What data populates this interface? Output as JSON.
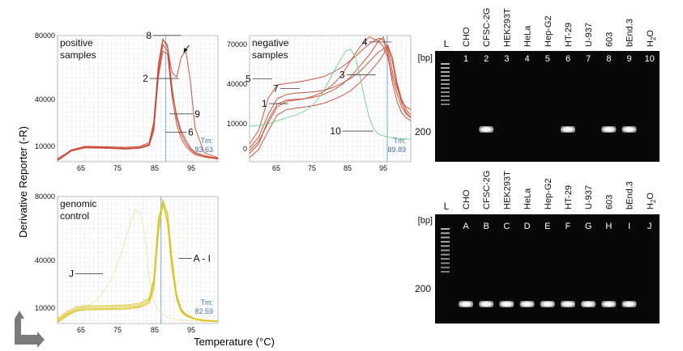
{
  "colors": {
    "background": "#ffffff",
    "gel": "#080808",
    "band": "#f2f2f2",
    "curve_red": "#c8442e",
    "curve_green": "#6fcf8e",
    "curve_yellow": "#d9c21b",
    "curve_yellow_light": "#ece6a0",
    "tm_line": "#6fa8d6",
    "tm_text": "#4a6fa5",
    "grid": "#dcdcdc"
  },
  "y_axis_label": "Derivative Reporter (-R)",
  "x_axis_label": "Temperature (°C)",
  "chart_data": [
    {
      "type": "line",
      "panel_title": "positive samples",
      "x_ticks": [
        "65",
        "75",
        "85",
        "95"
      ],
      "y_ticks": [
        "80000",
        "40000",
        "10000"
      ],
      "xlim": [
        60,
        95
      ],
      "ylim": [
        0,
        82000
      ],
      "tm_label": "Tm:",
      "tm_value": "83.63",
      "tm_x": 83.63,
      "annotations": [
        {
          "text": "8",
          "x": 83.0,
          "y": 80000
        },
        {
          "text": "2",
          "x": 82.6,
          "y": 52000
        },
        {
          "text": "9",
          "x": 85.5,
          "y": 29000
        },
        {
          "text": "6",
          "x": 84.6,
          "y": 17000
        }
      ],
      "arrow_at": [
        87.5,
        71000
      ],
      "series": [
        {
          "color": "red",
          "x": [
            60,
            62,
            63,
            64,
            66,
            70,
            75,
            78,
            80,
            81,
            82,
            83,
            84,
            85,
            86,
            87,
            88,
            89,
            90,
            92,
            95
          ],
          "y": [
            1000,
            5000,
            7200,
            8000,
            9500,
            9000,
            8500,
            9000,
            11000,
            22000,
            60000,
            79000,
            76000,
            48000,
            28000,
            18000,
            12000,
            8000,
            5500,
            3500,
            2000
          ]
        },
        {
          "color": "red",
          "x": [
            60,
            62,
            63,
            64,
            66,
            70,
            75,
            78,
            80,
            81,
            82,
            83,
            84,
            85,
            86,
            87,
            88,
            89,
            90,
            92,
            95
          ],
          "y": [
            2000,
            5600,
            7800,
            8500,
            10000,
            9800,
            9400,
            10000,
            12500,
            26000,
            64000,
            80000,
            74000,
            58000,
            55000,
            68000,
            72000,
            52000,
            22000,
            6000,
            2500
          ]
        },
        {
          "color": "red",
          "x": [
            60,
            62,
            63,
            64,
            66,
            70,
            75,
            78,
            80,
            81,
            82,
            83,
            84,
            85,
            86,
            87,
            88,
            89,
            90,
            92,
            95
          ],
          "y": [
            800,
            4800,
            7000,
            7600,
            9000,
            8800,
            8200,
            8800,
            10500,
            20000,
            55000,
            72000,
            70000,
            42000,
            24000,
            15000,
            10000,
            7000,
            4500,
            3000,
            1800
          ]
        },
        {
          "color": "red",
          "x": [
            60,
            62,
            63,
            64,
            66,
            70,
            75,
            78,
            80,
            81,
            82,
            83,
            84,
            85,
            86,
            87,
            88,
            89,
            90,
            92,
            95
          ],
          "y": [
            1500,
            5200,
            7500,
            8300,
            9700,
            9300,
            8800,
            9300,
            11500,
            24000,
            58000,
            76000,
            72000,
            45000,
            30000,
            20000,
            14000,
            9000,
            6000,
            4000,
            2200
          ]
        }
      ]
    },
    {
      "type": "line",
      "panel_title": "negative samples",
      "x_ticks": [
        "65",
        "75",
        "85",
        "95"
      ],
      "y_ticks": [
        "70000",
        "40000",
        "10000",
        "0",
        "-10000"
      ],
      "xlim": [
        60,
        95
      ],
      "ylim": [
        -18000,
        74000
      ],
      "tm_label": "Tm:",
      "tm_value": "89.89",
      "tm_x": 89.89,
      "annotations": [
        {
          "text": "4",
          "x": 87.0,
          "y": 67000
        },
        {
          "text": "5",
          "x": 61.0,
          "y": 40000
        },
        {
          "text": "7",
          "x": 67.0,
          "y": 33000
        },
        {
          "text": "3",
          "x": 83.5,
          "y": 43000
        },
        {
          "text": "1",
          "x": 64.5,
          "y": 22000
        },
        {
          "text": "10",
          "x": 83.0,
          "y": 2000
        }
      ],
      "series": [
        {
          "color": "red",
          "x": [
            60,
            62,
            64,
            66,
            68,
            70,
            72,
            74,
            76,
            78,
            80,
            82,
            84,
            86,
            88,
            89,
            90,
            91,
            92,
            93,
            94,
            95
          ],
          "y": [
            -12000,
            -5000,
            12000,
            24000,
            27000,
            27500,
            28000,
            29000,
            31000,
            34000,
            38000,
            44000,
            52000,
            60000,
            70000,
            73000,
            64000,
            48000,
            36000,
            26000,
            22000,
            20000
          ]
        },
        {
          "color": "red",
          "x": [
            60,
            62,
            64,
            66,
            68,
            70,
            72,
            74,
            76,
            78,
            80,
            82,
            84,
            86,
            88,
            89,
            90,
            91,
            92,
            93,
            94,
            95
          ],
          "y": [
            -5000,
            5000,
            28000,
            38000,
            39000,
            40000,
            41000,
            42500,
            44000,
            47000,
            51000,
            56000,
            62000,
            68000,
            72000,
            71000,
            60000,
            40000,
            26000,
            18000,
            14000,
            12000
          ]
        },
        {
          "color": "red",
          "x": [
            60,
            62,
            64,
            66,
            68,
            70,
            72,
            74,
            76,
            78,
            80,
            82,
            84,
            86,
            88,
            89,
            90,
            91,
            92,
            93,
            94,
            95
          ],
          "y": [
            -8000,
            0,
            16000,
            28000,
            31000,
            32000,
            32500,
            33000,
            34000,
            36000,
            39000,
            43000,
            48000,
            55000,
            62000,
            64000,
            67000,
            58000,
            40000,
            28000,
            20000,
            16000
          ]
        },
        {
          "color": "red",
          "x": [
            60,
            62,
            64,
            66,
            68,
            70,
            72,
            74,
            76,
            78,
            80,
            82,
            84,
            86,
            88,
            89,
            90,
            91,
            92,
            93,
            94,
            95
          ],
          "y": [
            -15000,
            -9000,
            4000,
            16000,
            20000,
            21000,
            22000,
            23000,
            24500,
            27000,
            30000,
            34000,
            40000,
            47000,
            55000,
            60000,
            66000,
            55000,
            38000,
            25000,
            18000,
            14000
          ]
        },
        {
          "color": "red",
          "x": [
            60,
            62,
            64,
            66,
            68,
            70,
            72,
            74,
            76,
            78,
            80,
            82,
            84,
            86,
            88,
            89,
            90,
            91,
            92,
            93,
            94,
            95
          ],
          "y": [
            -10000,
            -3000,
            10000,
            22000,
            26000,
            27000,
            28000,
            30000,
            33000,
            38000,
            45000,
            56000,
            66000,
            73000,
            70000,
            66000,
            58000,
            44000,
            32000,
            22000,
            17000,
            14000
          ]
        },
        {
          "color": "green",
          "x": [
            60,
            62,
            64,
            66,
            68,
            70,
            72,
            74,
            76,
            78,
            80,
            81,
            82,
            83,
            84,
            85,
            86,
            87,
            88,
            90,
            92,
            95
          ],
          "y": [
            8000,
            8500,
            9500,
            12000,
            14000,
            16000,
            19000,
            24000,
            33000,
            46000,
            58000,
            63000,
            64000,
            58000,
            44000,
            28000,
            14000,
            6000,
            2000,
            0,
            -1000,
            -1500
          ]
        }
      ]
    },
    {
      "type": "line",
      "panel_title": "genomic control",
      "x_ticks": [
        "65",
        "75",
        "85",
        "95"
      ],
      "y_ticks": [
        "80000",
        "40000",
        "10000"
      ],
      "xlim": [
        60,
        95
      ],
      "ylim": [
        0,
        82000
      ],
      "tm_label": "Tm:",
      "tm_value": "82.59",
      "tm_x": 82.59,
      "annotations": [
        {
          "text": "J",
          "x": 66.0,
          "y": 30000
        },
        {
          "text": "A - I",
          "x": 87.5,
          "y": 40000
        }
      ],
      "series": [
        {
          "color": "yellow-light",
          "x": [
            60,
            62,
            64,
            66,
            68,
            70,
            72,
            74,
            76,
            77,
            78,
            79,
            80,
            81,
            82,
            83,
            84,
            86,
            90,
            95
          ],
          "y": [
            2000,
            6000,
            8500,
            10500,
            14000,
            20000,
            30000,
            46000,
            66000,
            73000,
            72000,
            58000,
            30000,
            14000,
            9000,
            6000,
            4000,
            2500,
            1500,
            1000
          ]
        },
        {
          "color": "yellow",
          "x": [
            60,
            62,
            64,
            66,
            70,
            75,
            78,
            80,
            81,
            82,
            83,
            84,
            85,
            86,
            87,
            88,
            90,
            92,
            95
          ],
          "y": [
            1000,
            5500,
            8500,
            9500,
            9500,
            10000,
            11000,
            14000,
            24000,
            62000,
            80000,
            70000,
            40000,
            18000,
            9000,
            5500,
            3000,
            2000,
            1500
          ]
        },
        {
          "color": "yellow",
          "x": [
            60,
            62,
            64,
            66,
            70,
            75,
            78,
            80,
            81,
            82,
            83,
            84,
            85,
            86,
            87,
            88,
            90,
            92,
            95
          ],
          "y": [
            2000,
            6500,
            9500,
            10500,
            10500,
            11000,
            12000,
            15500,
            27000,
            66000,
            79000,
            66000,
            36000,
            16000,
            8000,
            5000,
            2800,
            1800,
            1400
          ]
        },
        {
          "color": "yellow",
          "x": [
            60,
            62,
            64,
            66,
            70,
            75,
            78,
            80,
            81,
            82,
            83,
            84,
            85,
            86,
            87,
            88,
            90,
            92,
            95
          ],
          "y": [
            500,
            4800,
            7800,
            8800,
            9000,
            9300,
            10500,
            13000,
            22000,
            58000,
            77000,
            72000,
            42000,
            19000,
            9500,
            6000,
            3200,
            2200,
            1600
          ]
        },
        {
          "color": "yellow",
          "x": [
            60,
            62,
            64,
            66,
            70,
            75,
            78,
            80,
            81,
            82,
            83,
            84,
            85,
            86,
            87,
            88,
            90,
            92,
            95
          ],
          "y": [
            3000,
            7500,
            10500,
            11500,
            11500,
            12000,
            13000,
            16500,
            29000,
            68000,
            78000,
            64000,
            34000,
            15000,
            7500,
            4800,
            2600,
            1700,
            1300
          ]
        }
      ]
    },
    {
      "type": "gel",
      "ladder_label": "L",
      "bp_label": "[bp]",
      "marker_label": "200",
      "lanes": [
        "CHO",
        "CFSC-2G",
        "HEK293T",
        "HeLa",
        "Hep-G2",
        "HT-29",
        "U-937",
        "603",
        "bEnd.3",
        "H2O"
      ],
      "lane_numbers": [
        "1",
        "2",
        "3",
        "4",
        "5",
        "6",
        "7",
        "8",
        "9",
        "10"
      ],
      "band_present": [
        0,
        1,
        0,
        0,
        0,
        1,
        0,
        1,
        1,
        0
      ]
    },
    {
      "type": "gel",
      "ladder_label": "L",
      "bp_label": "[bp]",
      "marker_label": "200",
      "lanes": [
        "CHO",
        "CFSC-2G",
        "HEK293T",
        "HeLa",
        "Hep-G2",
        "HT-29",
        "U-937",
        "603",
        "bEnd.3",
        "H2O"
      ],
      "lane_numbers": [
        "A",
        "B",
        "C",
        "D",
        "E",
        "F",
        "G",
        "H",
        "I",
        "J"
      ],
      "band_present": [
        1,
        1,
        1,
        1,
        1,
        1,
        1,
        1,
        1,
        0
      ]
    }
  ]
}
